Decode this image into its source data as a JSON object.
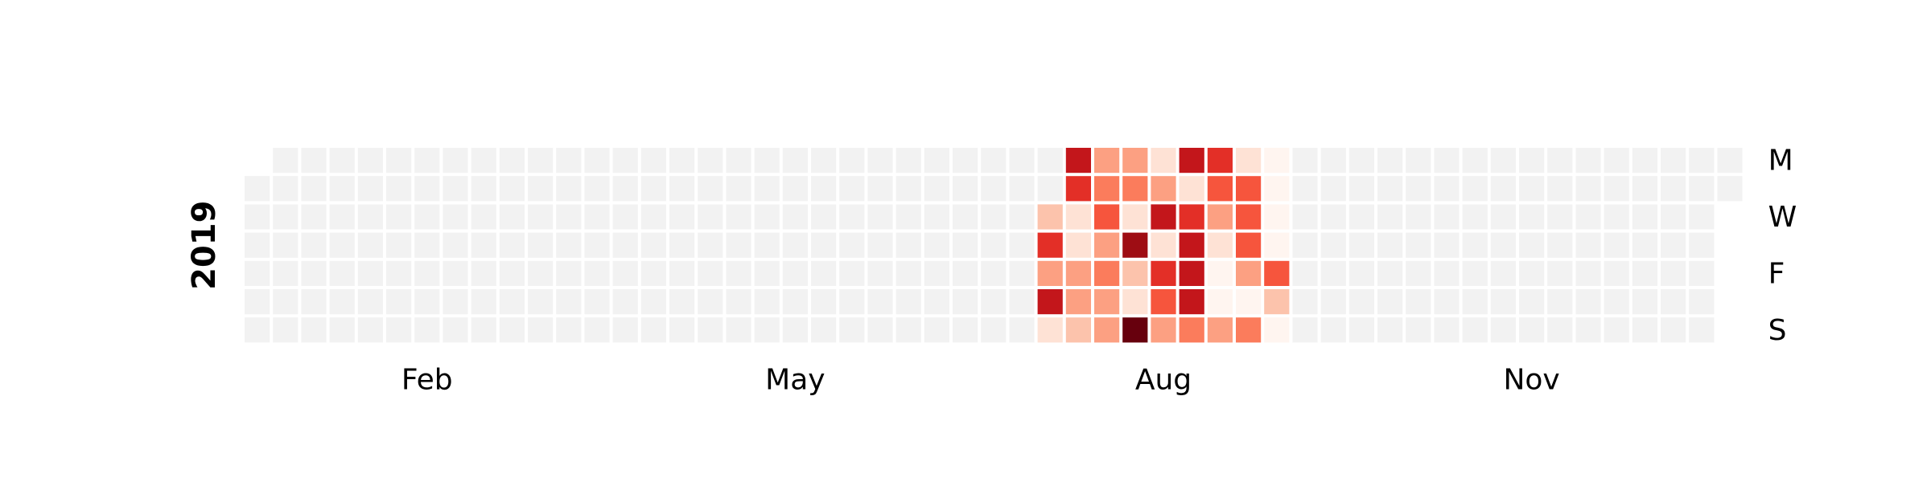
{
  "chart_data": {
    "type": "heatmap",
    "title": "",
    "year": "2019",
    "month_ticks": [
      {
        "label": "Feb",
        "week": 6.5
      },
      {
        "label": "May",
        "week": 19.5
      },
      {
        "label": "Aug",
        "week": 32.5
      },
      {
        "label": "Nov",
        "week": 45.5
      }
    ],
    "weekday_labels": [
      {
        "label": "M",
        "row": 0
      },
      {
        "label": "W",
        "row": 2
      },
      {
        "label": "F",
        "row": 4
      },
      {
        "label": "S",
        "row": 6
      }
    ],
    "rows": [
      "Mon",
      "Tue",
      "Wed",
      "Thu",
      "Fri",
      "Sat",
      "Sun"
    ],
    "first_week_start_row": 1,
    "last_week_end_row": 1,
    "num_weeks": 53,
    "value_range": [
      0,
      9
    ],
    "empty_color": "#f2f2f2",
    "colorscale": "Reds",
    "active_weeks": [
      {
        "week": 28,
        "values": [
          null,
          null,
          2,
          6,
          3,
          7,
          1
        ]
      },
      {
        "week": 29,
        "values": [
          7,
          6,
          1,
          1,
          3,
          3,
          2
        ]
      },
      {
        "week": 30,
        "values": [
          3,
          4,
          5,
          3,
          4,
          3,
          3
        ]
      },
      {
        "week": 31,
        "values": [
          3,
          4,
          1,
          8,
          2,
          1,
          9
        ]
      },
      {
        "week": 32,
        "values": [
          1,
          3,
          7,
          1,
          6,
          5,
          3
        ]
      },
      {
        "week": 33,
        "values": [
          7,
          1,
          6,
          7,
          7,
          7,
          4
        ]
      },
      {
        "week": 34,
        "values": [
          6,
          5,
          3,
          1,
          0,
          0,
          3
        ]
      },
      {
        "week": 35,
        "values": [
          1,
          5,
          5,
          5,
          3,
          0,
          4
        ]
      },
      {
        "week": 36,
        "values": [
          0,
          0,
          0,
          0,
          5,
          2,
          0
        ]
      }
    ]
  }
}
